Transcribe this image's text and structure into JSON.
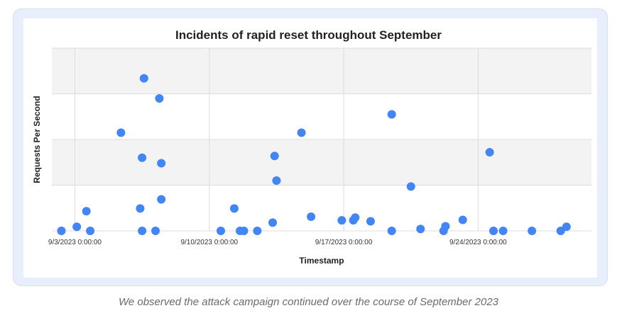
{
  "caption": "We observed the attack campaign continued over the course of September 2023",
  "colors": {
    "point": "#4285f4",
    "band": "#f3f3f3",
    "grid": "#dcdcdc",
    "frame": "#e8eefb"
  },
  "chart_data": {
    "type": "scatter",
    "title": "Incidents of rapid reset throughout September",
    "xlabel": "Timestamp",
    "ylabel": "Requests Per Second",
    "x_ticks": [
      "9/3/2023 0:00:00",
      "9/10/2023 0:00:00",
      "9/17/2023 0:00:00",
      "9/24/2023 0:00:00"
    ],
    "x_tick_days": [
      3,
      10,
      17,
      24
    ],
    "xlim": [
      1.8,
      29.9
    ],
    "ylim": [
      0,
      4
    ],
    "y_tick_labels_shown": false,
    "grid": true,
    "x_unit": "day of September 2023",
    "y_unit": "relative (axis unlabeled)",
    "points": [
      {
        "x": 2.3,
        "y": 0.0
      },
      {
        "x": 3.1,
        "y": 0.09
      },
      {
        "x": 3.6,
        "y": 0.43
      },
      {
        "x": 3.8,
        "y": 0.0
      },
      {
        "x": 5.4,
        "y": 2.15
      },
      {
        "x": 6.4,
        "y": 0.49
      },
      {
        "x": 6.5,
        "y": 1.6
      },
      {
        "x": 6.6,
        "y": 3.34
      },
      {
        "x": 6.5,
        "y": 0.0
      },
      {
        "x": 7.2,
        "y": 0.0
      },
      {
        "x": 7.4,
        "y": 2.9
      },
      {
        "x": 7.5,
        "y": 1.48
      },
      {
        "x": 7.5,
        "y": 0.69
      },
      {
        "x": 10.6,
        "y": 0.0
      },
      {
        "x": 11.3,
        "y": 0.49
      },
      {
        "x": 11.6,
        "y": 0.0
      },
      {
        "x": 11.8,
        "y": 0.0
      },
      {
        "x": 12.5,
        "y": 0.0
      },
      {
        "x": 13.3,
        "y": 0.18
      },
      {
        "x": 13.4,
        "y": 1.64
      },
      {
        "x": 13.5,
        "y": 1.1
      },
      {
        "x": 14.8,
        "y": 2.15
      },
      {
        "x": 15.3,
        "y": 0.31
      },
      {
        "x": 16.9,
        "y": 0.23
      },
      {
        "x": 17.5,
        "y": 0.23
      },
      {
        "x": 17.6,
        "y": 0.29
      },
      {
        "x": 18.4,
        "y": 0.21
      },
      {
        "x": 19.5,
        "y": 0.0
      },
      {
        "x": 19.5,
        "y": 2.55
      },
      {
        "x": 20.5,
        "y": 0.97
      },
      {
        "x": 21.0,
        "y": 0.04
      },
      {
        "x": 22.2,
        "y": 0.0
      },
      {
        "x": 22.3,
        "y": 0.1
      },
      {
        "x": 23.2,
        "y": 0.24
      },
      {
        "x": 24.6,
        "y": 1.72
      },
      {
        "x": 24.8,
        "y": 0.0
      },
      {
        "x": 25.3,
        "y": 0.0
      },
      {
        "x": 26.8,
        "y": 0.0
      },
      {
        "x": 28.3,
        "y": 0.0
      },
      {
        "x": 28.6,
        "y": 0.09
      }
    ]
  }
}
